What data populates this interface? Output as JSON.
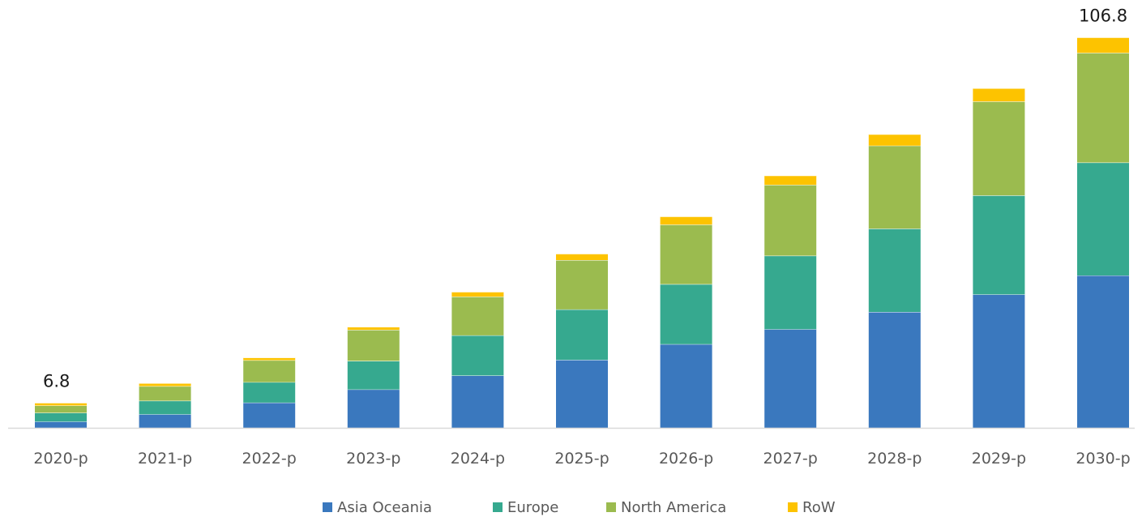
{
  "chart_data": {
    "type": "bar",
    "stacked": true,
    "categories": [
      "2020-p",
      "2021-p",
      "2022-p",
      "2023-p",
      "2024-p",
      "2025-p",
      "2026-p",
      "2027-p",
      "2028-p",
      "2029-p",
      "2030-p"
    ],
    "series": [
      {
        "name": "Asia Oceania",
        "color": "#3a78be",
        "values": [
          1.7,
          3.7,
          6.9,
          10.5,
          14.3,
          18.6,
          22.9,
          27.0,
          31.7,
          36.5,
          41.7
        ]
      },
      {
        "name": "Europe",
        "color": "#36a98f",
        "values": [
          2.4,
          3.7,
          5.6,
          7.8,
          11.0,
          13.8,
          16.4,
          20.1,
          22.8,
          27.1,
          30.9
        ]
      },
      {
        "name": "North America",
        "color": "#9bbb4f",
        "values": [
          2.0,
          4.0,
          6.0,
          8.5,
          10.6,
          13.5,
          16.3,
          19.4,
          22.7,
          25.7,
          30.0
        ]
      },
      {
        "name": "RoW",
        "color": "#fdc300",
        "values": [
          0.7,
          0.8,
          0.7,
          0.8,
          1.3,
          1.7,
          2.2,
          2.5,
          3.1,
          3.6,
          4.2
        ]
      }
    ],
    "data_labels": [
      {
        "category": "2020-p",
        "text": "6.8"
      },
      {
        "category": "2030-p",
        "text": "106.8"
      }
    ],
    "ylim": [
      0,
      110
    ],
    "grid": false,
    "legend": "bottom-center",
    "title": "",
    "xlabel": "",
    "ylabel": ""
  }
}
